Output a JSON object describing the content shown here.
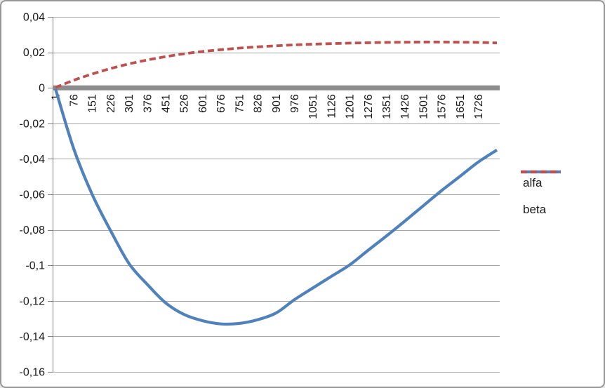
{
  "chart_data": {
    "type": "line",
    "title": "",
    "xlabel": "",
    "ylabel": "",
    "number_format": "decimal-comma",
    "grid": true,
    "legend_position": "right",
    "zero_axis_band": true,
    "xlim": [
      1,
      1801
    ],
    "ylim": [
      -0.16,
      0.04
    ],
    "y_tick_step": 0.02,
    "x_tick_labels": [
      "1",
      "76",
      "151",
      "226",
      "301",
      "376",
      "451",
      "526",
      "601",
      "676",
      "751",
      "826",
      "901",
      "976",
      "1051",
      "1126",
      "1201",
      "1276",
      "1351",
      "1426",
      "1501",
      "1576",
      "1651",
      "1726"
    ],
    "y_tick_labels": [
      "0,04",
      "0,02",
      "0",
      "-0,02",
      "-0,04",
      "-0,06",
      "-0,08",
      "-0,1",
      "-0,12",
      "-0,14",
      "-0,16"
    ],
    "x": [
      1,
      76,
      151,
      226,
      301,
      376,
      451,
      526,
      601,
      676,
      751,
      826,
      901,
      976,
      1051,
      1126,
      1201,
      1276,
      1351,
      1426,
      1501,
      1576,
      1651,
      1726,
      1801
    ],
    "series": [
      {
        "name": "alfa",
        "color": "#4F81BD",
        "line_style": "solid",
        "values": [
          -0.0005,
          -0.0345,
          -0.0601,
          -0.0805,
          -0.099,
          -0.1108,
          -0.1212,
          -0.1277,
          -0.1312,
          -0.133,
          -0.1327,
          -0.1306,
          -0.1268,
          -0.1193,
          -0.1127,
          -0.1062,
          -0.0997,
          -0.0915,
          -0.0834,
          -0.075,
          -0.0664,
          -0.0578,
          -0.0498,
          -0.0417,
          -0.035
        ]
      },
      {
        "name": "beta",
        "color": "#C0504D",
        "line_style": "dashed",
        "values": [
          0.0002,
          0.0043,
          0.0078,
          0.0109,
          0.0135,
          0.0157,
          0.0176,
          0.0192,
          0.0205,
          0.0215,
          0.0224,
          0.0231,
          0.0237,
          0.0242,
          0.0246,
          0.0249,
          0.0252,
          0.0254,
          0.0256,
          0.0257,
          0.0258,
          0.0258,
          0.0257,
          0.0256,
          0.0253
        ]
      }
    ]
  },
  "colors": {
    "alfa": "#4F81BD",
    "beta": "#C0504D",
    "gridline": "#A6A6A6",
    "axis_line": "#808080",
    "zero_band": "#8C8C8C",
    "tick_text": "#1a1a1a",
    "frame_border": "#979797",
    "background": "#FFFFFF"
  }
}
